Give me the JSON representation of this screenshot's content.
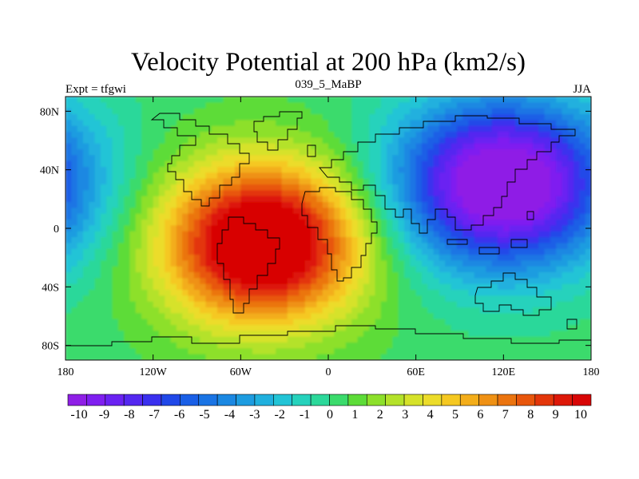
{
  "chart_data": {
    "type": "heatmap",
    "title": "Velocity Potential at 200 hPa (km2/s)",
    "left_string": "Expt = tfgwi",
    "center_string": "039_5_MaBP",
    "right_string": "JJA",
    "x_ticks": [
      {
        "value": -180,
        "label": "180"
      },
      {
        "value": -120,
        "label": "120W"
      },
      {
        "value": -60,
        "label": "60W"
      },
      {
        "value": 0,
        "label": "0"
      },
      {
        "value": 60,
        "label": "60E"
      },
      {
        "value": 120,
        "label": "120E"
      },
      {
        "value": 180,
        "label": "180"
      }
    ],
    "y_ticks": [
      {
        "value": 80,
        "label": "80N"
      },
      {
        "value": 40,
        "label": "40N"
      },
      {
        "value": 0,
        "label": "0"
      },
      {
        "value": -40,
        "label": "40S"
      },
      {
        "value": -80,
        "label": "80S"
      }
    ],
    "xlim": [
      -180,
      180
    ],
    "ylim": [
      -90,
      90
    ],
    "field_extrema": [
      {
        "lon": -45,
        "lat": -10,
        "value": 10,
        "kind": "maximum"
      },
      {
        "lon": 120,
        "lat": 30,
        "value": -10,
        "kind": "minimum"
      }
    ],
    "colorbar": {
      "labels": [
        "-10",
        "-9",
        "-8",
        "-7",
        "-6",
        "-5",
        "-4",
        "-3",
        "-2",
        "-1",
        "0",
        "1",
        "2",
        "3",
        "4",
        "5",
        "6",
        "7",
        "8",
        "9",
        "10"
      ],
      "colors": [
        "#8f1fe6",
        "#7f1ff0",
        "#6a22f2",
        "#5428f0",
        "#3a30ee",
        "#2048e8",
        "#1a5fe6",
        "#1a74e4",
        "#1b88e2",
        "#1d9ce0",
        "#20b0de",
        "#22c4d6",
        "#26d2bc",
        "#2cd89a",
        "#3bdb6c",
        "#5ddc38",
        "#8de02b",
        "#b4e22a",
        "#d6e22a",
        "#ecdc2a",
        "#f5c821",
        "#f3ad1a",
        "#ef9114",
        "#eb740f",
        "#e8560c",
        "#e3360a",
        "#dd1808",
        "#d80606"
      ]
    }
  }
}
